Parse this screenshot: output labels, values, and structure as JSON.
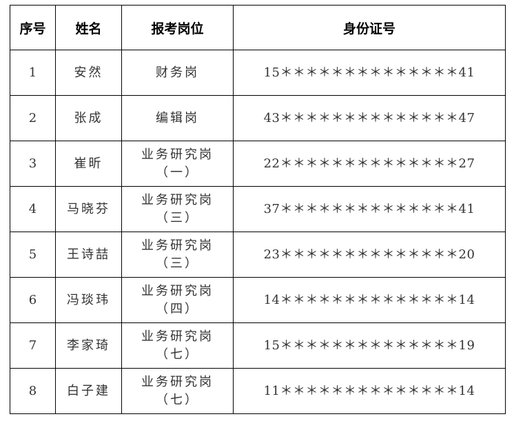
{
  "headers": [
    "序号",
    "姓名",
    "报考岗位",
    "身份证号"
  ],
  "rows": [
    {
      "no": "1",
      "name": "安然",
      "post": "财务岗",
      "post_sub": "",
      "id": "15＊＊＊＊＊＊＊＊＊＊＊＊＊＊41"
    },
    {
      "no": "2",
      "name": "张成",
      "post": "编辑岗",
      "post_sub": "",
      "id": "43＊＊＊＊＊＊＊＊＊＊＊＊＊＊47"
    },
    {
      "no": "3",
      "name": "崔昕",
      "post": "业务研究岗",
      "post_sub": "（一）",
      "id": "22＊＊＊＊＊＊＊＊＊＊＊＊＊＊27"
    },
    {
      "no": "4",
      "name": "马晓芬",
      "post": "业务研究岗",
      "post_sub": "（三）",
      "id": "37＊＊＊＊＊＊＊＊＊＊＊＊＊＊41"
    },
    {
      "no": "5",
      "name": "王诗喆",
      "post": "业务研究岗",
      "post_sub": "（三）",
      "id": "23＊＊＊＊＊＊＊＊＊＊＊＊＊＊20"
    },
    {
      "no": "6",
      "name": "冯琰玮",
      "post": "业务研究岗",
      "post_sub": "（四）",
      "id": "14＊＊＊＊＊＊＊＊＊＊＊＊＊＊14"
    },
    {
      "no": "7",
      "name": "李家琦",
      "post": "业务研究岗",
      "post_sub": "（七）",
      "id": "15＊＊＊＊＊＊＊＊＊＊＊＊＊＊19"
    },
    {
      "no": "8",
      "name": "白子建",
      "post": "业务研究岗",
      "post_sub": "（七）",
      "id": "11＊＊＊＊＊＊＊＊＊＊＊＊＊＊14"
    }
  ]
}
